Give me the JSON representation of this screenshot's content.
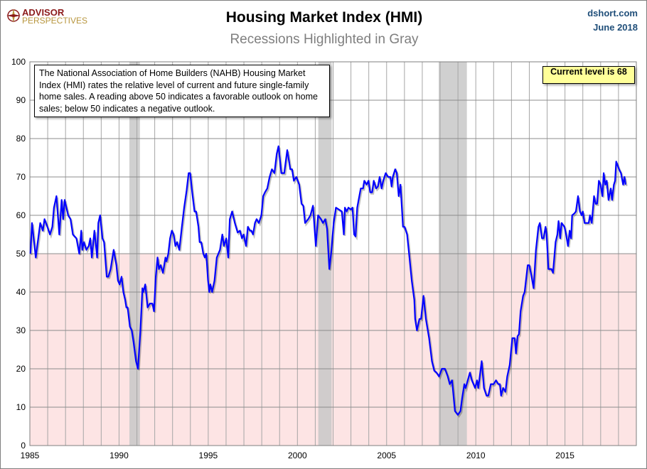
{
  "header": {
    "logo_text": "ADVISOR PERSPECTIVES",
    "logo_line1": "ADVISOR",
    "logo_line2": "PERSPECTIVES",
    "source": "dshort.com",
    "date": "June 2018"
  },
  "chart_data": {
    "type": "line",
    "title": "Housing Market Index (HMI)",
    "subtitle": "Recessions Highlighted in Gray",
    "xlim": [
      1985,
      2019
    ],
    "ylim": [
      0,
      100
    ],
    "x_ticks": [
      1985,
      1990,
      1995,
      2000,
      2005,
      2010,
      2015
    ],
    "y_ticks": [
      0,
      10,
      20,
      30,
      40,
      50,
      60,
      70,
      80,
      90,
      100
    ],
    "grid": true,
    "threshold": 50,
    "colors": {
      "line": "#0000ff",
      "below_threshold_fill": "#fde4e4",
      "recession": "#c8c8c8",
      "callout": "#ffff99"
    },
    "recessions": [
      [
        1990.58,
        1991.17
      ],
      [
        2001.17,
        2001.92
      ],
      [
        2007.92,
        2009.5
      ]
    ],
    "annotation": "The National Association of Home Builders (NAHB) Housing Market Index (HMI) rates the relative level of current and future single-family home sales. A reading above 50 indicates a favorable outlook on home sales; below 50 indicates a negative outlook.",
    "callout": "Current level is 68",
    "series": [
      {
        "points": [
          [
            1985.03,
            50
          ],
          [
            1985.12,
            58
          ],
          [
            1985.33,
            49
          ],
          [
            1985.58,
            58
          ],
          [
            1985.73,
            56
          ],
          [
            1985.82,
            59
          ],
          [
            1985.98,
            57
          ],
          [
            1986.13,
            55
          ],
          [
            1986.26,
            57
          ],
          [
            1986.35,
            62
          ],
          [
            1986.49,
            65
          ],
          [
            1986.65,
            55
          ],
          [
            1986.78,
            64
          ],
          [
            1986.87,
            59
          ],
          [
            1986.95,
            64
          ],
          [
            1987.15,
            60
          ],
          [
            1987.28,
            59
          ],
          [
            1987.41,
            55
          ],
          [
            1987.61,
            54
          ],
          [
            1987.77,
            50
          ],
          [
            1987.88,
            56
          ],
          [
            1987.94,
            51
          ],
          [
            1988.03,
            53
          ],
          [
            1988.17,
            51
          ],
          [
            1988.3,
            52
          ],
          [
            1988.39,
            54
          ],
          [
            1988.47,
            49
          ],
          [
            1988.62,
            56
          ],
          [
            1988.77,
            49
          ],
          [
            1988.84,
            58
          ],
          [
            1988.94,
            60
          ],
          [
            1989.07,
            54
          ],
          [
            1989.16,
            53
          ],
          [
            1989.31,
            44
          ],
          [
            1989.4,
            44
          ],
          [
            1989.53,
            46
          ],
          [
            1989.7,
            51
          ],
          [
            1989.85,
            47
          ],
          [
            1989.94,
            43
          ],
          [
            1990.03,
            42
          ],
          [
            1990.14,
            44
          ],
          [
            1990.24,
            40
          ],
          [
            1990.34,
            38
          ],
          [
            1990.41,
            36
          ],
          [
            1990.48,
            36
          ],
          [
            1990.61,
            31
          ],
          [
            1990.71,
            30
          ],
          [
            1990.81,
            27
          ],
          [
            1990.95,
            22
          ],
          [
            1991.06,
            20
          ],
          [
            1991.2,
            30
          ],
          [
            1991.31,
            41
          ],
          [
            1991.36,
            40
          ],
          [
            1991.47,
            42
          ],
          [
            1991.6,
            36
          ],
          [
            1991.73,
            37
          ],
          [
            1991.87,
            37
          ],
          [
            1991.96,
            35
          ],
          [
            1992.06,
            44
          ],
          [
            1992.16,
            49
          ],
          [
            1992.24,
            46
          ],
          [
            1992.33,
            47
          ],
          [
            1992.46,
            45
          ],
          [
            1992.6,
            49
          ],
          [
            1992.66,
            48
          ],
          [
            1992.76,
            50
          ],
          [
            1992.86,
            54
          ],
          [
            1992.96,
            56
          ],
          [
            1993.06,
            55
          ],
          [
            1993.16,
            52
          ],
          [
            1993.25,
            53
          ],
          [
            1993.38,
            51
          ],
          [
            1993.52,
            57
          ],
          [
            1993.65,
            62
          ],
          [
            1993.79,
            66.5
          ],
          [
            1993.9,
            71
          ],
          [
            1993.99,
            71
          ],
          [
            1994.1,
            66
          ],
          [
            1994.23,
            61
          ],
          [
            1994.32,
            61
          ],
          [
            1994.45,
            57
          ],
          [
            1994.52,
            53
          ],
          [
            1994.61,
            53
          ],
          [
            1994.72,
            50
          ],
          [
            1994.81,
            49
          ],
          [
            1994.89,
            50
          ],
          [
            1994.99,
            43
          ],
          [
            1995.06,
            40
          ],
          [
            1995.12,
            42
          ],
          [
            1995.22,
            40
          ],
          [
            1995.35,
            43
          ],
          [
            1995.48,
            49
          ],
          [
            1995.66,
            51
          ],
          [
            1995.79,
            55
          ],
          [
            1995.88,
            52
          ],
          [
            1996.01,
            54
          ],
          [
            1996.12,
            49
          ],
          [
            1996.21,
            59
          ],
          [
            1996.34,
            61
          ],
          [
            1996.49,
            58
          ],
          [
            1996.65,
            55.5
          ],
          [
            1996.78,
            56
          ],
          [
            1996.89,
            54
          ],
          [
            1996.98,
            55
          ],
          [
            1997.12,
            52
          ],
          [
            1997.22,
            57
          ],
          [
            1997.34,
            56
          ],
          [
            1997.42,
            56
          ],
          [
            1997.51,
            55
          ],
          [
            1997.62,
            58
          ],
          [
            1997.71,
            59
          ],
          [
            1997.84,
            58
          ],
          [
            1997.98,
            60
          ],
          [
            1998.08,
            65
          ],
          [
            1998.18,
            66
          ],
          [
            1998.31,
            67
          ],
          [
            1998.44,
            70
          ],
          [
            1998.57,
            72
          ],
          [
            1998.71,
            71
          ],
          [
            1998.84,
            76
          ],
          [
            1998.94,
            78
          ],
          [
            1999.1,
            71
          ],
          [
            1999.26,
            71
          ],
          [
            1999.43,
            77
          ],
          [
            1999.6,
            72
          ],
          [
            1999.7,
            72
          ],
          [
            1999.8,
            69
          ],
          [
            1999.94,
            70
          ],
          [
            2000.1,
            68
          ],
          [
            2000.23,
            63
          ],
          [
            2000.33,
            62.5
          ],
          [
            2000.43,
            58
          ],
          [
            2000.6,
            59
          ],
          [
            2000.73,
            60
          ],
          [
            2000.87,
            62.5
          ],
          [
            2001.03,
            52
          ],
          [
            2001.16,
            60
          ],
          [
            2001.32,
            59
          ],
          [
            2001.43,
            58
          ],
          [
            2001.56,
            59
          ],
          [
            2001.66,
            56.5
          ],
          [
            2001.79,
            46
          ],
          [
            2001.89,
            50
          ],
          [
            2002.03,
            58
          ],
          [
            2002.16,
            62
          ],
          [
            2002.49,
            61
          ],
          [
            2002.6,
            55
          ],
          [
            2002.66,
            62
          ],
          [
            2002.76,
            61
          ],
          [
            2002.86,
            62
          ],
          [
            2003.0,
            61.5
          ],
          [
            2003.09,
            62
          ],
          [
            2003.18,
            55
          ],
          [
            2003.26,
            54.5
          ],
          [
            2003.35,
            62
          ],
          [
            2003.55,
            67
          ],
          [
            2003.68,
            67
          ],
          [
            2003.75,
            69
          ],
          [
            2003.88,
            68
          ],
          [
            2003.98,
            69
          ],
          [
            2004.08,
            66
          ],
          [
            2004.19,
            66
          ],
          [
            2004.28,
            69
          ],
          [
            2004.41,
            67
          ],
          [
            2004.51,
            67.5
          ],
          [
            2004.61,
            70
          ],
          [
            2004.72,
            67
          ],
          [
            2004.81,
            69
          ],
          [
            2004.95,
            71
          ],
          [
            2005.08,
            70
          ],
          [
            2005.21,
            70
          ],
          [
            2005.28,
            67.5
          ],
          [
            2005.35,
            70
          ],
          [
            2005.48,
            72
          ],
          [
            2005.57,
            71
          ],
          [
            2005.68,
            65
          ],
          [
            2005.78,
            68
          ],
          [
            2005.92,
            57
          ],
          [
            2006.01,
            57
          ],
          [
            2006.15,
            55
          ],
          [
            2006.28,
            49
          ],
          [
            2006.41,
            43
          ],
          [
            2006.55,
            38
          ],
          [
            2006.6,
            33
          ],
          [
            2006.7,
            30
          ],
          [
            2006.84,
            33
          ],
          [
            2006.93,
            33
          ],
          [
            2007.07,
            39
          ],
          [
            2007.2,
            33
          ],
          [
            2007.38,
            28
          ],
          [
            2007.54,
            22
          ],
          [
            2007.67,
            19.5
          ],
          [
            2007.8,
            19
          ],
          [
            2007.94,
            18
          ],
          [
            2008.1,
            20
          ],
          [
            2008.27,
            20
          ],
          [
            2008.43,
            18
          ],
          [
            2008.54,
            16
          ],
          [
            2008.67,
            17
          ],
          [
            2008.83,
            9
          ],
          [
            2009.0,
            8
          ],
          [
            2009.14,
            9
          ],
          [
            2009.24,
            12.5
          ],
          [
            2009.36,
            16
          ],
          [
            2009.43,
            15
          ],
          [
            2009.67,
            19
          ],
          [
            2009.78,
            17
          ],
          [
            2009.96,
            15
          ],
          [
            2010.07,
            17
          ],
          [
            2010.14,
            15
          ],
          [
            2010.33,
            22
          ],
          [
            2010.46,
            15
          ],
          [
            2010.6,
            13
          ],
          [
            2010.7,
            13
          ],
          [
            2010.84,
            16
          ],
          [
            2011.0,
            16
          ],
          [
            2011.13,
            17
          ],
          [
            2011.26,
            16
          ],
          [
            2011.35,
            16
          ],
          [
            2011.42,
            13
          ],
          [
            2011.53,
            15
          ],
          [
            2011.66,
            14
          ],
          [
            2011.76,
            18
          ],
          [
            2011.9,
            21
          ],
          [
            2012.05,
            28
          ],
          [
            2012.18,
            28
          ],
          [
            2012.25,
            24
          ],
          [
            2012.34,
            28.5
          ],
          [
            2012.42,
            29
          ],
          [
            2012.51,
            35
          ],
          [
            2012.65,
            39
          ],
          [
            2012.74,
            40
          ],
          [
            2012.91,
            47
          ],
          [
            2013.0,
            47
          ],
          [
            2013.13,
            44
          ],
          [
            2013.24,
            41
          ],
          [
            2013.37,
            51
          ],
          [
            2013.51,
            57
          ],
          [
            2013.59,
            58
          ],
          [
            2013.71,
            54
          ],
          [
            2013.8,
            54
          ],
          [
            2013.91,
            57
          ],
          [
            2013.97,
            55
          ],
          [
            2014.07,
            46
          ],
          [
            2014.24,
            46
          ],
          [
            2014.33,
            45
          ],
          [
            2014.47,
            53
          ],
          [
            2014.57,
            55
          ],
          [
            2014.64,
            58.5
          ],
          [
            2014.73,
            54
          ],
          [
            2014.81,
            58
          ],
          [
            2014.97,
            57
          ],
          [
            2015.06,
            55
          ],
          [
            2015.17,
            52
          ],
          [
            2015.26,
            56
          ],
          [
            2015.34,
            54
          ],
          [
            2015.4,
            60
          ],
          [
            2015.53,
            60.5
          ],
          [
            2015.61,
            61
          ],
          [
            2015.73,
            65
          ],
          [
            2015.84,
            61
          ],
          [
            2015.93,
            60
          ],
          [
            2016.0,
            61
          ],
          [
            2016.1,
            58
          ],
          [
            2016.33,
            58
          ],
          [
            2016.4,
            60
          ],
          [
            2016.5,
            58
          ],
          [
            2016.63,
            65
          ],
          [
            2016.72,
            63
          ],
          [
            2016.8,
            63
          ],
          [
            2016.9,
            69
          ],
          [
            2016.99,
            68
          ],
          [
            2017.1,
            65
          ],
          [
            2017.17,
            71
          ],
          [
            2017.26,
            68
          ],
          [
            2017.34,
            69
          ],
          [
            2017.44,
            64
          ],
          [
            2017.57,
            67
          ],
          [
            2017.64,
            64
          ],
          [
            2017.74,
            68
          ],
          [
            2017.81,
            69
          ],
          [
            2017.87,
            74
          ],
          [
            2018.03,
            72
          ],
          [
            2018.14,
            71
          ],
          [
            2018.26,
            68
          ],
          [
            2018.34,
            70
          ],
          [
            2018.4,
            68
          ]
        ]
      }
    ]
  }
}
